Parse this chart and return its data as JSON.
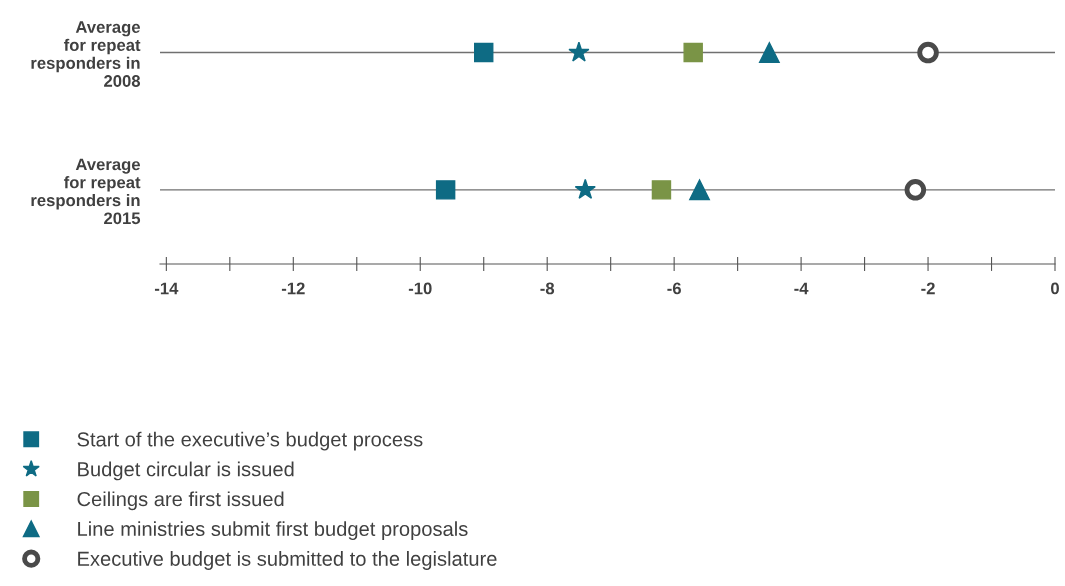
{
  "chart_data": {
    "type": "scatter",
    "orientation": "horizontal",
    "categories": [
      "Average\nfor repeat\nresponders in\n2008",
      "Average\nfor repeat\nresponders in\n2015"
    ],
    "series": [
      {
        "name": "Start of the executive’s budget process",
        "color": "#0e6b84",
        "marker": "square",
        "values": [
          -9.0,
          -9.6
        ]
      },
      {
        "name": "Budget circular is issued",
        "color": "#0e6b84",
        "marker": "star",
        "values": [
          -7.5,
          -7.4
        ]
      },
      {
        "name": "Ceilings are first issued",
        "color": "#7a9446",
        "marker": "square",
        "values": [
          -5.7,
          -6.2
        ]
      },
      {
        "name": "Line ministries submit first budget proposals",
        "color": "#0e6b84",
        "marker": "triangle",
        "values": [
          -4.5,
          -5.6
        ]
      },
      {
        "name": "Executive budget is submitted to the legislature",
        "color": "#4a4a4a",
        "marker": "circle",
        "values": [
          -2.0,
          -2.2
        ]
      }
    ],
    "xlim": [
      -14.1,
      0
    ],
    "xticks": [
      -14,
      {
        "value": -13,
        "label": null
      },
      -12,
      {
        "value": -11,
        "label": null
      },
      -10,
      {
        "value": -9,
        "label": null
      },
      -8,
      {
        "value": -7,
        "label": null
      },
      -6,
      {
        "value": -5,
        "label": null
      },
      -4,
      {
        "value": -3,
        "label": null
      },
      -2,
      {
        "value": -1,
        "label": null
      },
      0
    ],
    "grid": "y",
    "legend": "bottom left"
  }
}
